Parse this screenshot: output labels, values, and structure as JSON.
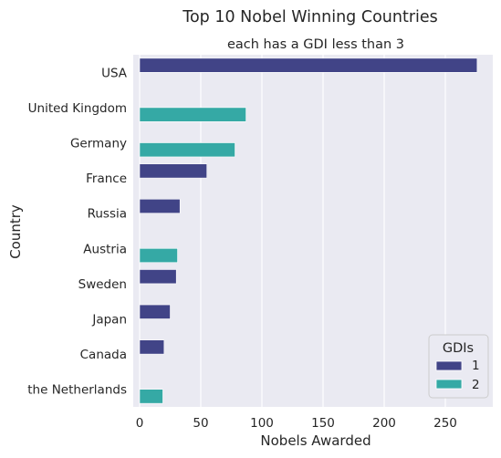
{
  "chart_data": {
    "type": "bar",
    "orientation": "horizontal",
    "title": "Top 10 Nobel Winning Countries",
    "subtitle": "each has a GDI less than 3",
    "xlabel": "Nobels Awarded",
    "ylabel": "Country",
    "xlim": [
      0,
      287
    ],
    "xticks": [
      0,
      50,
      100,
      150,
      200,
      250
    ],
    "grid": true,
    "categories": [
      "USA",
      "United Kingdom",
      "Germany",
      "France",
      "Russia",
      "Austria",
      "Sweden",
      "Japan",
      "Canada",
      "the Netherlands"
    ],
    "hue_order": [
      "1",
      "2"
    ],
    "bars": [
      {
        "country": "USA",
        "gdi": "1",
        "value": 276
      },
      {
        "country": "United Kingdom",
        "gdi": "2",
        "value": 87
      },
      {
        "country": "Germany",
        "gdi": "2",
        "value": 78
      },
      {
        "country": "France",
        "gdi": "1",
        "value": 55
      },
      {
        "country": "Russia",
        "gdi": "1",
        "value": 33
      },
      {
        "country": "Austria",
        "gdi": "2",
        "value": 31
      },
      {
        "country": "Sweden",
        "gdi": "1",
        "value": 30
      },
      {
        "country": "Japan",
        "gdi": "1",
        "value": 25
      },
      {
        "country": "Canada",
        "gdi": "1",
        "value": 20
      },
      {
        "country": "the Netherlands",
        "gdi": "2",
        "value": 19
      }
    ],
    "legend": {
      "title": "GDIs",
      "placement": "lower-right",
      "entries": [
        {
          "label": "1",
          "color": "#414487"
        },
        {
          "label": "2",
          "color": "#35a9a5"
        }
      ]
    },
    "colors": {
      "background": "#eaeaf2",
      "grid": "#ffffff",
      "gdi_1": "#414487",
      "gdi_2": "#35a9a5"
    }
  }
}
